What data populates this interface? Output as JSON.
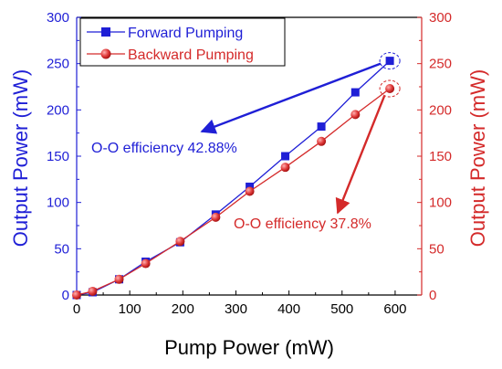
{
  "chart_data": {
    "type": "line",
    "xlabel": "Pump Power (mW)",
    "ylabel": "Output Power (mW)",
    "y2label": "Output Power (mW)",
    "xlim": [
      0,
      650
    ],
    "ylim": [
      0,
      300
    ],
    "y2lim": [
      0,
      300
    ],
    "x_ticks": [
      0,
      100,
      200,
      300,
      400,
      500,
      600
    ],
    "y_ticks": [
      0,
      50,
      100,
      150,
      200,
      250,
      300
    ],
    "legend_position": "top-left",
    "colors": {
      "forward": "#1f1fd6",
      "backward": "#d42a2a"
    },
    "series": [
      {
        "name": "Forward Pumping",
        "marker": "square",
        "x": [
          0,
          30,
          80,
          130,
          195,
          262,
          326,
          393,
          461,
          525,
          590
        ],
        "y": [
          0,
          3,
          17,
          36,
          57,
          87,
          117,
          150,
          182,
          219,
          253
        ]
      },
      {
        "name": "Backward Pumping",
        "marker": "circle",
        "x": [
          0,
          30,
          80,
          130,
          195,
          262,
          326,
          393,
          461,
          525,
          590
        ],
        "y": [
          0,
          4,
          17,
          34,
          58,
          84,
          112,
          138,
          166,
          195,
          223
        ]
      }
    ],
    "annotations": [
      {
        "text": "O-O efficiency 42.88%",
        "series": 0
      },
      {
        "text": "O-O efficiency 37.8%",
        "series": 1
      }
    ]
  }
}
